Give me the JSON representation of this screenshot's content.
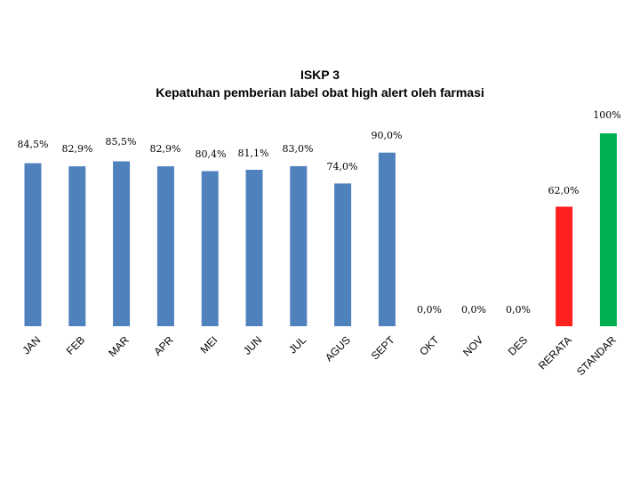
{
  "chart_data": {
    "type": "bar",
    "title": "ISKP 3",
    "subtitle": "Kepatuhan pemberian label obat high alert oleh farmasi",
    "categories": [
      "JAN",
      "FEB",
      "MAR",
      "APR",
      "MEI",
      "JUN",
      "JUL",
      "AGUS",
      "SEPT",
      "OKT",
      "NOV",
      "DES",
      "RERATA",
      "STANDAR"
    ],
    "values": [
      84.5,
      82.9,
      85.5,
      82.9,
      80.4,
      81.1,
      83.0,
      74.0,
      90.0,
      0.0,
      0.0,
      0.0,
      62.0,
      100
    ],
    "data_labels": [
      "84,5%",
      "82,9%",
      "85,5%",
      "82,9%",
      "80,4%",
      "81,1%",
      "83,0%",
      "74,0%",
      "90,0%",
      "0,0%",
      "0,0%",
      "0,0%",
      "62,0%",
      "100%"
    ],
    "colors": [
      "#4f81bd",
      "#4f81bd",
      "#4f81bd",
      "#4f81bd",
      "#4f81bd",
      "#4f81bd",
      "#4f81bd",
      "#4f81bd",
      "#4f81bd",
      "#4f81bd",
      "#4f81bd",
      "#4f81bd",
      "#ff2020",
      "#00b050"
    ],
    "ylim": [
      0,
      100
    ],
    "grid": false,
    "legend": "none",
    "xlabel": "",
    "ylabel": ""
  }
}
